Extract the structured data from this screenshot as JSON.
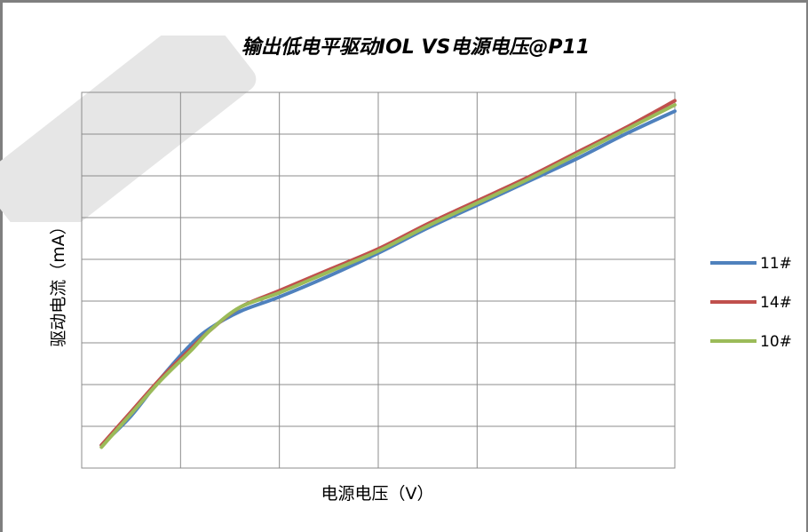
{
  "chart_data": {
    "type": "line",
    "title": "输出低电平驱动IOL VS电源电压@P11",
    "xlabel": "电源电压（V）",
    "ylabel": "驱动电流（mA）",
    "xlim": [
      0,
      6
    ],
    "ylim": [
      0,
      9
    ],
    "grid": true,
    "legend_position": "right",
    "series": [
      {
        "name": "11#",
        "color": "#4f81bd",
        "x": [
          0.2,
          0.5,
          0.8,
          1.1,
          1.3,
          1.6,
          2.0,
          2.5,
          3.0,
          3.5,
          4.0,
          4.5,
          5.0,
          5.5,
          6.0
        ],
        "y": [
          0.55,
          1.25,
          2.15,
          2.95,
          3.35,
          3.75,
          4.1,
          4.6,
          5.15,
          5.75,
          6.3,
          6.85,
          7.4,
          8.0,
          8.55
        ]
      },
      {
        "name": "14#",
        "color": "#c0504d",
        "x": [
          0.2,
          0.5,
          0.8,
          1.1,
          1.3,
          1.6,
          2.0,
          2.5,
          3.0,
          3.5,
          4.0,
          4.5,
          5.0,
          5.5,
          6.0
        ],
        "y": [
          0.55,
          1.35,
          2.15,
          2.85,
          3.3,
          3.85,
          4.25,
          4.75,
          5.25,
          5.85,
          6.4,
          6.95,
          7.55,
          8.15,
          8.8
        ]
      },
      {
        "name": "10#",
        "color": "#9bbb59",
        "x": [
          0.2,
          0.5,
          0.8,
          1.1,
          1.3,
          1.6,
          2.0,
          2.5,
          3.0,
          3.5,
          4.0,
          4.5,
          5.0,
          5.5,
          6.0
        ],
        "y": [
          0.5,
          1.3,
          2.1,
          2.8,
          3.3,
          3.85,
          4.2,
          4.7,
          5.2,
          5.8,
          6.35,
          6.9,
          7.5,
          8.1,
          8.7
        ]
      }
    ]
  }
}
